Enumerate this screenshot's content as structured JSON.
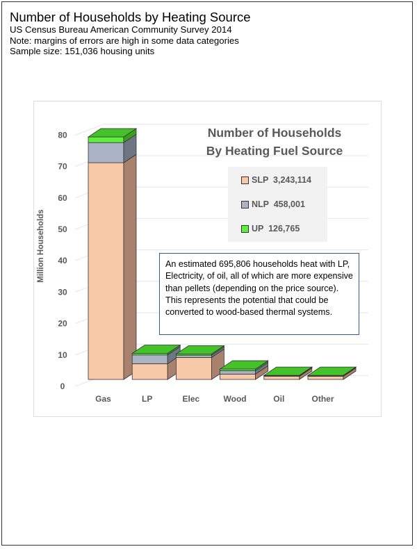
{
  "header": {
    "title": "Number of Households by Heating Source",
    "subtitle": "US Census Bureau American Community Survey 2014",
    "note": "Note:  margins of errors are high in some data categories",
    "sample": "Sample size: 151,036 housing units"
  },
  "chart_data": {
    "type": "bar",
    "stacked": true,
    "three_d": true,
    "title": "Number of Households\nBy Heating Fuel Source",
    "title_lines": [
      "Number of Households",
      "By Heating Fuel Source"
    ],
    "xlabel": "",
    "ylabel": "Million Households",
    "ylim": [
      0,
      80
    ],
    "yticks": [
      0,
      10,
      20,
      30,
      40,
      50,
      60,
      70,
      80
    ],
    "yticks_labels": [
      "0",
      "10",
      "20",
      "30",
      "40",
      "50",
      "60",
      "70",
      "80"
    ],
    "categories": [
      "Gas",
      "LP",
      "Elec",
      "Wood",
      "Oil",
      "Other"
    ],
    "series": [
      {
        "name": "SLP",
        "legend_label": "SLP  3,243,114",
        "color": "#f7c9a8",
        "side": "#a8826c",
        "values": [
          69,
          5.0,
          7.0,
          1.7,
          1.0,
          1.0
        ]
      },
      {
        "name": "NLP",
        "legend_label": "NLP  458,001",
        "color": "#aab4c4",
        "side": "#6e7684",
        "values": [
          6.4,
          2.8,
          0.7,
          1.1,
          0.2,
          0.1
        ]
      },
      {
        "name": "UP",
        "legend_label": "UP  126,765",
        "color": "#5ef03c",
        "side": "#3aa020",
        "values": [
          1.8,
          0.5,
          0.4,
          0.5,
          0.1,
          0.2
        ]
      }
    ],
    "top_face_color": "#44c22a",
    "grid": true,
    "legend_position": "right",
    "annotation": "An estimated 695,806 households heat with LP, Electricity, of oil, all of which are more expensive than pellets (depending on the price source).  This represents the potential that could be converted to wood-based thermal systems."
  }
}
